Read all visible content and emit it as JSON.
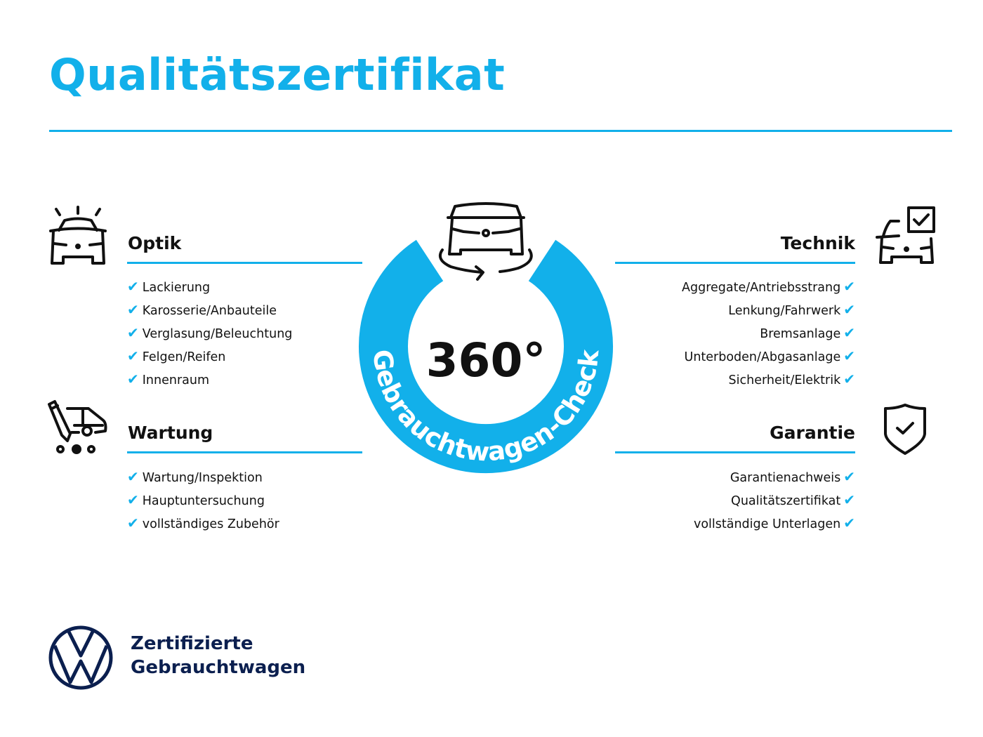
{
  "title": "Qualitätszertifikat",
  "colors": {
    "accent": "#12b0ea",
    "text": "#111111",
    "brand_navy": "#0b1f4f"
  },
  "center_badge": {
    "value": "360°",
    "arc_text": "Gebrauchtwagen-Check",
    "icon": "car-rotate-360-icon"
  },
  "sections": {
    "optik": {
      "heading": "Optik",
      "icon": "car-lights-icon",
      "items": [
        "Lackierung",
        "Karosserie/Anbauteile",
        "Verglasung/Beleuchtung",
        "Felgen/Reifen",
        "Innenraum"
      ]
    },
    "wartung": {
      "heading": "Wartung",
      "icon": "van-pencil-icon",
      "items": [
        "Wartung/Inspektion",
        "Hauptuntersuchung",
        "vollständiges Zubehör"
      ]
    },
    "technik": {
      "heading": "Technik",
      "icon": "car-checkbox-icon",
      "items": [
        "Aggregate/Antriebsstrang",
        "Lenkung/Fahrwerk",
        "Bremsanlage",
        "Unterboden/Abgasanlage",
        "Sicherheit/Elektrik"
      ]
    },
    "garantie": {
      "heading": "Garantie",
      "icon": "shield-check-icon",
      "items": [
        "Garantienachweis",
        "Qualitätszertifikat",
        "vollständige Unterlagen"
      ]
    }
  },
  "check_glyph": "✔",
  "footer": {
    "logo": "VW",
    "line1": "Zertifizierte",
    "line2": "Gebrauchtwagen"
  }
}
